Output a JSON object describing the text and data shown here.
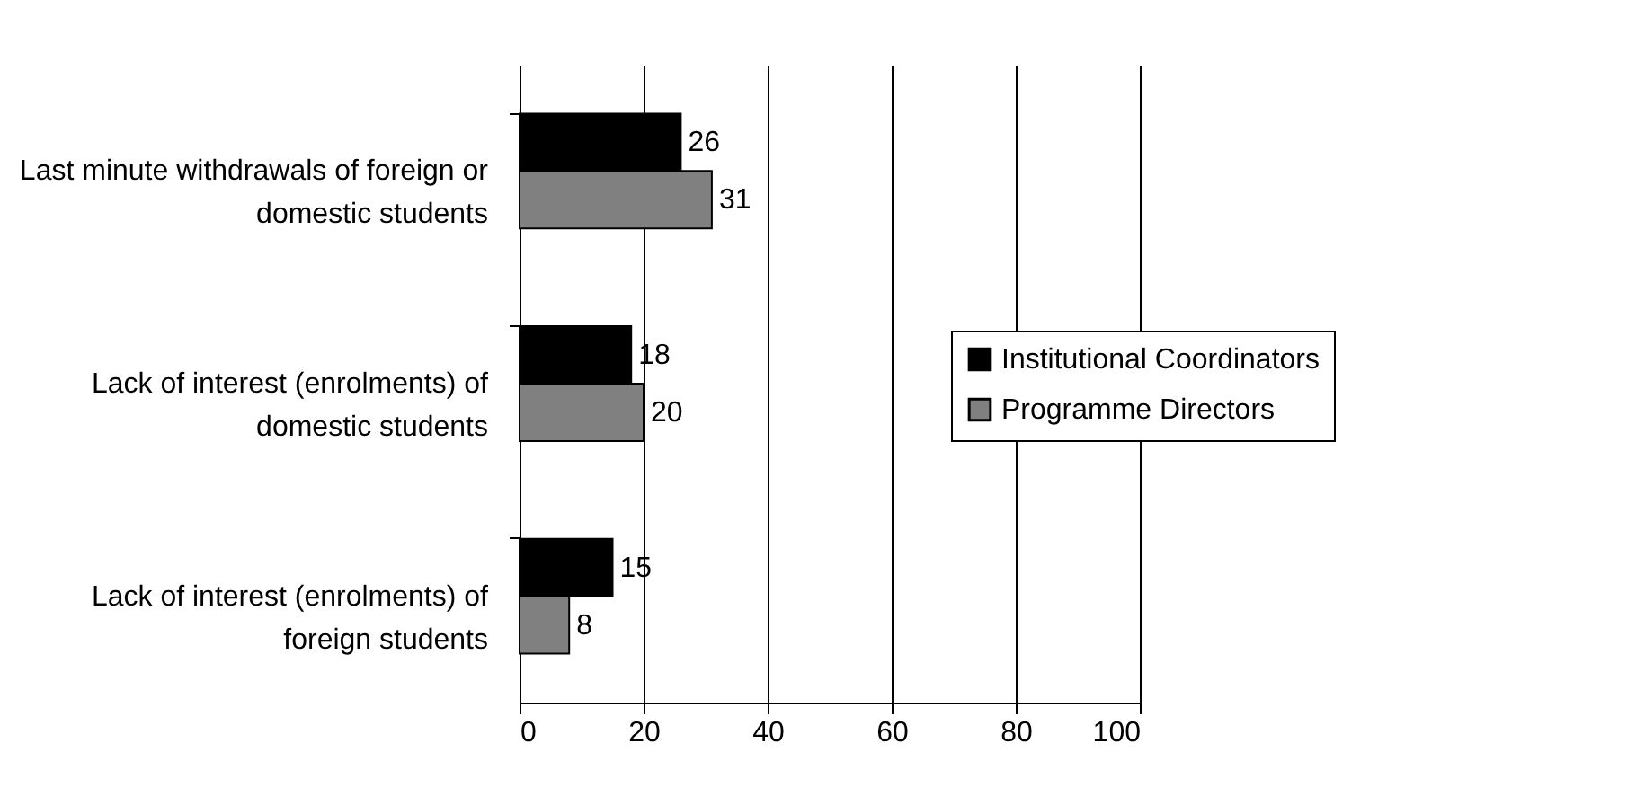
{
  "chart_data": {
    "type": "bar",
    "orientation": "horizontal",
    "categories": [
      "Last minute withdrawals of foreign or domestic students",
      "Lack of interest (enrolments) of domestic students",
      "Lack of interest (enrolments) of foreign students"
    ],
    "series": [
      {
        "name": "Institutional Coordinators",
        "color": "#000000",
        "values": [
          26,
          18,
          15
        ]
      },
      {
        "name": "Programme Directors",
        "color": "#808080",
        "values": [
          31,
          20,
          8
        ]
      }
    ],
    "xlim": [
      0,
      100
    ],
    "xticks": [
      0,
      20,
      40,
      60,
      80,
      100
    ],
    "grid": "x",
    "legend": "right",
    "data_labels": true
  }
}
